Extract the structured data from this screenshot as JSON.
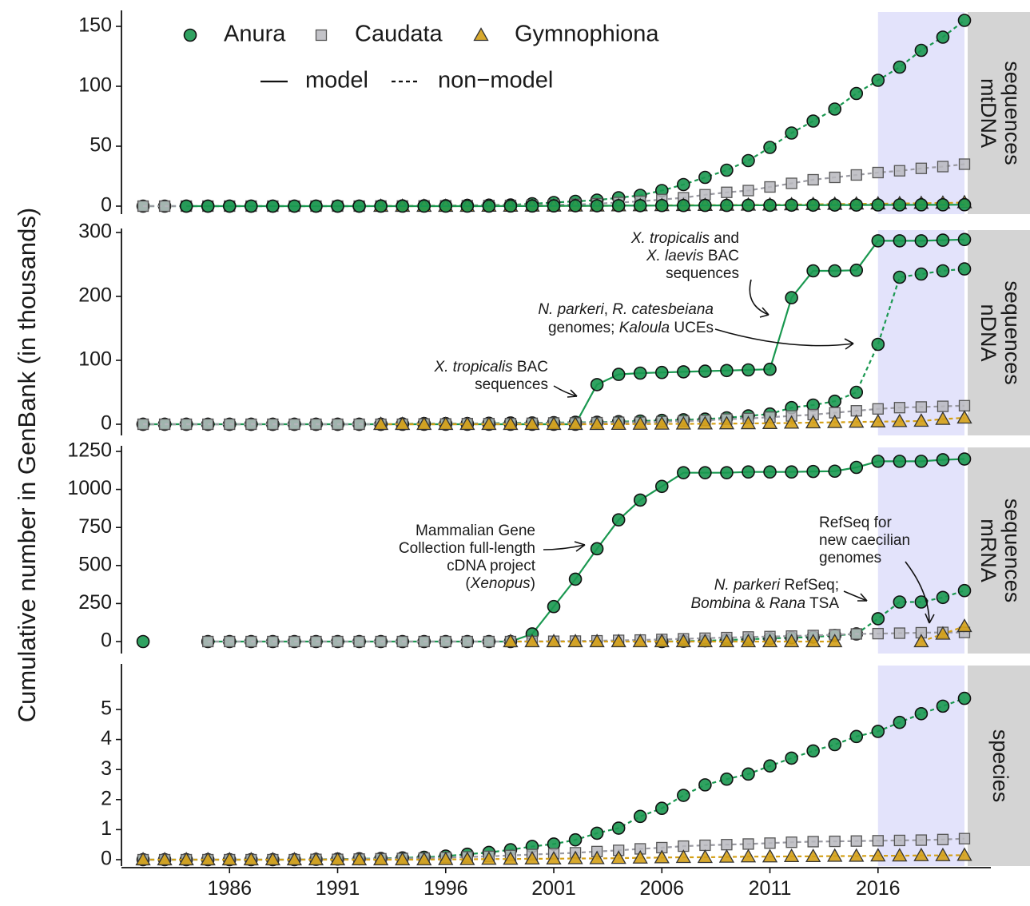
{
  "figure": {
    "ylabel": "Cumulative number in GenBank (in thousands)",
    "legend": {
      "taxa": [
        {
          "name": "Anura",
          "marker": "circle",
          "color": "#1a9850"
        },
        {
          "name": "Caudata",
          "marker": "square",
          "color": "#b8b8be"
        },
        {
          "name": "Gymnophiona",
          "marker": "triangle",
          "color": "#d4a017"
        }
      ],
      "line_types": [
        {
          "name": "model",
          "style": "solid"
        },
        {
          "name": "non−model",
          "style": "dashed"
        }
      ],
      "placement": "top-left"
    },
    "colors": {
      "anura": "#1a9850",
      "caudata": "#b8b8be",
      "gymnophiona": "#d4a017",
      "highlight": "#e3e3fb",
      "strip": "#d4d4d4"
    },
    "x_ticks": [
      1986,
      1991,
      1996,
      2001,
      2006,
      2011,
      2016
    ],
    "x_range": [
      1981,
      2020
    ],
    "highlight_range": [
      2016,
      2020
    ]
  },
  "chart_data": [
    {
      "type": "line",
      "panel": "mtDNA sequences",
      "strip_label": [
        "mtDNA",
        "sequences"
      ],
      "ylim": [
        0,
        160
      ],
      "y_ticks": [
        0,
        50,
        100,
        150
      ],
      "x": [
        1982,
        1983,
        1984,
        1985,
        1986,
        1987,
        1988,
        1989,
        1990,
        1991,
        1992,
        1993,
        1994,
        1995,
        1996,
        1997,
        1998,
        1999,
        2000,
        2001,
        2002,
        2003,
        2004,
        2005,
        2006,
        2007,
        2008,
        2009,
        2010,
        2011,
        2012,
        2013,
        2014,
        2015,
        2016,
        2017,
        2018,
        2019,
        2020
      ],
      "series": [
        {
          "name": "Anura",
          "model": false,
          "values": [
            0,
            0,
            0,
            0,
            0,
            0,
            0,
            0,
            0,
            0,
            0,
            0.1,
            0.2,
            0.3,
            0.4,
            0.6,
            0.8,
            1,
            2,
            3,
            4,
            5,
            7,
            9,
            13,
            18,
            24,
            30,
            38,
            49,
            61,
            71,
            81,
            94,
            105,
            116,
            130,
            141,
            155
          ]
        },
        {
          "name": "Caudata",
          "model": false,
          "values": [
            0,
            0,
            0,
            0,
            0,
            0,
            0,
            0,
            0,
            0,
            0,
            0.1,
            0.1,
            0.2,
            0.3,
            0.4,
            0.5,
            0.6,
            0.8,
            1,
            1.5,
            2,
            3,
            4,
            5.5,
            7,
            9.5,
            11.5,
            13,
            16,
            19,
            22,
            24,
            26,
            28,
            29.5,
            31.5,
            33,
            35
          ]
        },
        {
          "name": "Gymnophiona",
          "model": false,
          "values": [
            null,
            null,
            null,
            null,
            null,
            null,
            null,
            null,
            null,
            null,
            null,
            0,
            0,
            0,
            0,
            0,
            0.1,
            0.1,
            0.2,
            0.2,
            0.3,
            0.3,
            0.4,
            0.5,
            0.6,
            0.7,
            0.8,
            0.9,
            1,
            1.1,
            1.3,
            1.5,
            1.7,
            1.9,
            2,
            2.2,
            2.4,
            2.6,
            3
          ]
        },
        {
          "name": "Anura",
          "model": true,
          "values": [
            null,
            null,
            0,
            0,
            0,
            0,
            0,
            0,
            0,
            0,
            0,
            0,
            0,
            0,
            0,
            0,
            0,
            0.1,
            0.1,
            0.2,
            0.3,
            0.3,
            0.4,
            0.4,
            0.5,
            0.5,
            0.6,
            0.6,
            0.7,
            0.7,
            0.8,
            0.8,
            0.9,
            0.9,
            1,
            1,
            1.1,
            1.1,
            1.2
          ]
        }
      ]
    },
    {
      "type": "line",
      "panel": "nDNA sequences",
      "strip_label": [
        "nDNA",
        "sequences"
      ],
      "ylim": [
        0,
        300
      ],
      "y_ticks": [
        0,
        100,
        200,
        300
      ],
      "x": [
        1982,
        1983,
        1984,
        1985,
        1986,
        1987,
        1988,
        1989,
        1990,
        1991,
        1992,
        1993,
        1994,
        1995,
        1996,
        1997,
        1998,
        1999,
        2000,
        2001,
        2002,
        2003,
        2004,
        2005,
        2006,
        2007,
        2008,
        2009,
        2010,
        2011,
        2012,
        2013,
        2014,
        2015,
        2016,
        2017,
        2018,
        2019,
        2020
      ],
      "series": [
        {
          "name": "Anura",
          "model": true,
          "values": [
            0,
            0,
            0,
            0,
            0,
            0,
            0,
            0,
            0,
            0,
            0,
            0,
            0,
            0,
            0,
            0,
            0,
            0,
            0,
            0,
            0,
            62,
            78,
            80,
            81,
            82,
            83,
            84,
            85,
            86,
            198,
            240,
            240,
            241,
            287,
            287,
            287,
            288,
            289
          ]
        },
        {
          "name": "Anura",
          "model": false,
          "values": [
            0,
            0,
            0,
            0,
            0,
            0,
            0,
            0,
            0,
            0,
            0,
            0,
            0.5,
            1,
            1,
            1,
            1.5,
            2,
            2,
            2.5,
            3,
            3,
            4,
            5,
            6,
            7,
            8,
            10,
            13,
            16,
            26,
            30,
            36,
            50,
            125,
            230,
            235,
            240,
            243
          ]
        },
        {
          "name": "Caudata",
          "model": false,
          "values": [
            0,
            0,
            0,
            0,
            0,
            0,
            0,
            0,
            0,
            0,
            0,
            0,
            0,
            0.5,
            0.5,
            1,
            1,
            1,
            1.5,
            2,
            2,
            2.5,
            3,
            3,
            4,
            5,
            6,
            8,
            9,
            11,
            13,
            15,
            18,
            21,
            24,
            26,
            27,
            28,
            29
          ]
        },
        {
          "name": "Gymnophiona",
          "model": false,
          "values": [
            null,
            null,
            null,
            null,
            null,
            null,
            null,
            null,
            null,
            null,
            null,
            0,
            0,
            0,
            0,
            0,
            0,
            0,
            0,
            0,
            0,
            0,
            0.2,
            0.3,
            0.5,
            0.6,
            0.8,
            1,
            1.2,
            1.5,
            2,
            2.5,
            3,
            3.5,
            4,
            4.5,
            5,
            8,
            10
          ]
        }
      ]
    },
    {
      "type": "line",
      "panel": "mRNA sequences",
      "strip_label": [
        "mRNA",
        "sequences"
      ],
      "ylim": [
        0,
        1250
      ],
      "y_ticks": [
        0,
        250,
        500,
        750,
        1000,
        1250
      ],
      "x": [
        1982,
        1983,
        1984,
        1985,
        1986,
        1987,
        1988,
        1989,
        1990,
        1991,
        1992,
        1993,
        1994,
        1995,
        1996,
        1997,
        1998,
        1999,
        2000,
        2001,
        2002,
        2003,
        2004,
        2005,
        2006,
        2007,
        2008,
        2009,
        2010,
        2011,
        2012,
        2013,
        2014,
        2015,
        2016,
        2017,
        2018,
        2019,
        2020
      ],
      "series": [
        {
          "name": "Anura",
          "model": true,
          "values": [
            0,
            null,
            null,
            0,
            0,
            0,
            0,
            0,
            0,
            0,
            0,
            0,
            0,
            0,
            0,
            0,
            0,
            0,
            50,
            230,
            410,
            610,
            800,
            930,
            1020,
            1110,
            1110,
            1110,
            1115,
            1115,
            1115,
            1118,
            1120,
            1145,
            1185,
            1185,
            1185,
            1195,
            1200
          ]
        },
        {
          "name": "Anura",
          "model": false,
          "values": [
            null,
            null,
            null,
            null,
            null,
            null,
            null,
            null,
            null,
            null,
            null,
            null,
            null,
            null,
            null,
            null,
            null,
            null,
            null,
            null,
            null,
            null,
            null,
            null,
            0,
            2,
            5,
            10,
            15,
            20,
            25,
            30,
            40,
            50,
            150,
            260,
            260,
            290,
            335
          ]
        },
        {
          "name": "Caudata",
          "model": false,
          "values": [
            null,
            null,
            null,
            0,
            0,
            0,
            0,
            0,
            0,
            0,
            0,
            0,
            0,
            0,
            0,
            0,
            0,
            0,
            1,
            2,
            3,
            5,
            8,
            10,
            14,
            18,
            22,
            26,
            30,
            33,
            36,
            40,
            45,
            50,
            52,
            55,
            58,
            60,
            60
          ]
        },
        {
          "name": "Gymnophiona",
          "model": false,
          "values": [
            null,
            null,
            null,
            null,
            null,
            null,
            null,
            null,
            null,
            null,
            null,
            null,
            null,
            null,
            null,
            null,
            null,
            0,
            0,
            0,
            0,
            0,
            0,
            0,
            0,
            0,
            0,
            0,
            0,
            0,
            0,
            0,
            0,
            null,
            null,
            null,
            0,
            50,
            100
          ]
        }
      ],
      "annotations_note": "see annotations list"
    },
    {
      "type": "line",
      "panel": "species",
      "strip_label": [
        "species"
      ],
      "ylim": [
        0,
        6
      ],
      "y_ticks": [
        0,
        1,
        2,
        3,
        4,
        5
      ],
      "x": [
        1982,
        1983,
        1984,
        1985,
        1986,
        1987,
        1988,
        1989,
        1990,
        1991,
        1992,
        1993,
        1994,
        1995,
        1996,
        1997,
        1998,
        1999,
        2000,
        2001,
        2002,
        2003,
        2004,
        2005,
        2006,
        2007,
        2008,
        2009,
        2010,
        2011,
        2012,
        2013,
        2014,
        2015,
        2016,
        2017,
        2018,
        2019,
        2020
      ],
      "series": [
        {
          "name": "Anura",
          "model": false,
          "values": [
            0,
            0,
            0,
            0,
            0,
            0,
            0,
            0,
            0.01,
            0.02,
            0.03,
            0.04,
            0.06,
            0.08,
            0.12,
            0.18,
            0.24,
            0.33,
            0.44,
            0.52,
            0.66,
            0.88,
            1.05,
            1.44,
            1.71,
            2.14,
            2.49,
            2.68,
            2.85,
            3.12,
            3.38,
            3.62,
            3.83,
            4.1,
            4.27,
            4.57,
            4.86,
            5.11,
            5.37
          ]
        },
        {
          "name": "Caudata",
          "model": false,
          "values": [
            0,
            0,
            0,
            0,
            0,
            0,
            0,
            0,
            0.01,
            0.01,
            0.02,
            0.03,
            0.04,
            0.05,
            0.07,
            0.09,
            0.11,
            0.14,
            0.17,
            0.2,
            0.23,
            0.27,
            0.31,
            0.36,
            0.4,
            0.45,
            0.48,
            0.5,
            0.52,
            0.55,
            0.58,
            0.6,
            0.61,
            0.62,
            0.63,
            0.64,
            0.65,
            0.67,
            0.7
          ]
        },
        {
          "name": "Gymnophiona",
          "model": false,
          "values": [
            0,
            0,
            0,
            0,
            0,
            0,
            0,
            0,
            0,
            0,
            0,
            0,
            0,
            0,
            0.01,
            0.01,
            0.02,
            0.02,
            0.03,
            0.03,
            0.04,
            0.04,
            0.05,
            0.06,
            0.07,
            0.08,
            0.08,
            0.09,
            0.1,
            0.1,
            0.11,
            0.11,
            0.12,
            0.12,
            0.13,
            0.13,
            0.14,
            0.14,
            0.15
          ]
        }
      ]
    }
  ],
  "annotations": [
    {
      "panel": 1,
      "lines": [
        [
          {
            "t": "X. tropicalis",
            "i": true
          },
          {
            "t": " BAC",
            "i": false
          }
        ],
        [
          {
            "t": "sequences",
            "i": false
          }
        ]
      ]
    },
    {
      "panel": 1,
      "lines": [
        [
          {
            "t": "X. tropicalis",
            "i": true
          },
          {
            "t": " and",
            "i": false
          }
        ],
        [
          {
            "t": "X. laevis",
            "i": true
          },
          {
            "t": " BAC",
            "i": false
          }
        ],
        [
          {
            "t": "sequences",
            "i": false
          }
        ]
      ]
    },
    {
      "panel": 1,
      "lines": [
        [
          {
            "t": "N. parkeri",
            "i": true
          },
          {
            "t": ", ",
            "i": false
          },
          {
            "t": "R. catesbeiana",
            "i": true
          }
        ],
        [
          {
            "t": "genomes; ",
            "i": false
          },
          {
            "t": "Kaloula",
            "i": true
          },
          {
            "t": " UCEs",
            "i": false
          }
        ]
      ]
    },
    {
      "panel": 2,
      "lines": [
        [
          {
            "t": "Mammalian Gene",
            "i": false
          }
        ],
        [
          {
            "t": "Collection full-length",
            "i": false
          }
        ],
        [
          {
            "t": "cDNA project",
            "i": false
          }
        ],
        [
          {
            "t": "(",
            "i": false
          },
          {
            "t": "Xenopus",
            "i": true
          },
          {
            "t": ")",
            "i": false
          }
        ]
      ]
    },
    {
      "panel": 2,
      "lines": [
        [
          {
            "t": "RefSeq for",
            "i": false
          }
        ],
        [
          {
            "t": "new caecilian",
            "i": false
          }
        ],
        [
          {
            "t": "genomes",
            "i": false
          }
        ]
      ]
    },
    {
      "panel": 2,
      "lines": [
        [
          {
            "t": "N. parkeri",
            "i": true
          },
          {
            "t": " RefSeq;",
            "i": false
          }
        ],
        [
          {
            "t": "Bombina",
            "i": true
          },
          {
            "t": " & ",
            "i": false
          },
          {
            "t": "Rana",
            "i": true
          },
          {
            "t": " TSA",
            "i": false
          }
        ]
      ]
    }
  ]
}
